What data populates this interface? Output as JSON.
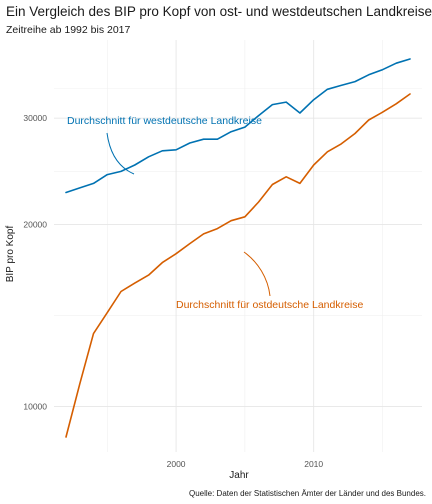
{
  "chart_data": {
    "type": "line",
    "title": "Ein Vergleich des BIP pro Kopf von ost- und westdeutschen Landkreisen",
    "subtitle": "Zeitreihe ab 1992 bis 2017",
    "xlabel": "Jahr",
    "ylabel": "BIP pro Kopf",
    "caption": "Quelle: Daten der Statistischen Ämter der Länder und des Bundes.",
    "x_scale": "linear",
    "y_scale": "log",
    "xlim": [
      1992,
      2017
    ],
    "ylim": [
      8900,
      37600
    ],
    "x_ticks": [
      2000,
      2010
    ],
    "y_ticks": [
      10000,
      20000,
      30000
    ],
    "y_tick_labels": [
      "10000",
      "20000",
      "30000"
    ],
    "grid": true,
    "legend": "none (direct labels with curved arrows)",
    "x": [
      1992,
      1993,
      1994,
      1995,
      1996,
      1997,
      1998,
      1999,
      2000,
      2001,
      2002,
      2003,
      2004,
      2005,
      2006,
      2007,
      2008,
      2009,
      2010,
      2011,
      2012,
      2013,
      2014,
      2015,
      2016,
      2017
    ],
    "series": [
      {
        "name": "Durchschnitt für westdeutsche Landkreise",
        "color": "#0072B2",
        "values": [
          22600,
          23000,
          23400,
          24200,
          24500,
          25100,
          25900,
          26500,
          26600,
          27300,
          27700,
          27700,
          28500,
          29000,
          30300,
          31600,
          31900,
          30600,
          32200,
          33500,
          34000,
          34500,
          35400,
          36100,
          37000,
          37600
        ]
      },
      {
        "name": "Durchschnitt für ostdeutsche Landkreise",
        "color": "#D55E00",
        "values": [
          8900,
          10900,
          13200,
          14300,
          15500,
          16000,
          16500,
          17300,
          17900,
          18600,
          19300,
          19700,
          20300,
          20600,
          21800,
          23300,
          24000,
          23400,
          25100,
          26400,
          27200,
          28300,
          29800,
          30700,
          31700,
          32900
        ]
      }
    ]
  }
}
